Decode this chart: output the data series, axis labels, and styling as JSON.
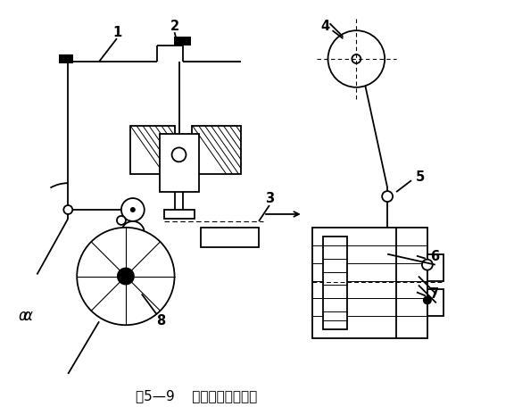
{
  "title": "图5—9    单边辊式送料装置",
  "bg_color": "#ffffff",
  "line_color": "#000000",
  "figsize": [
    5.76,
    4.65
  ],
  "dpi": 100
}
